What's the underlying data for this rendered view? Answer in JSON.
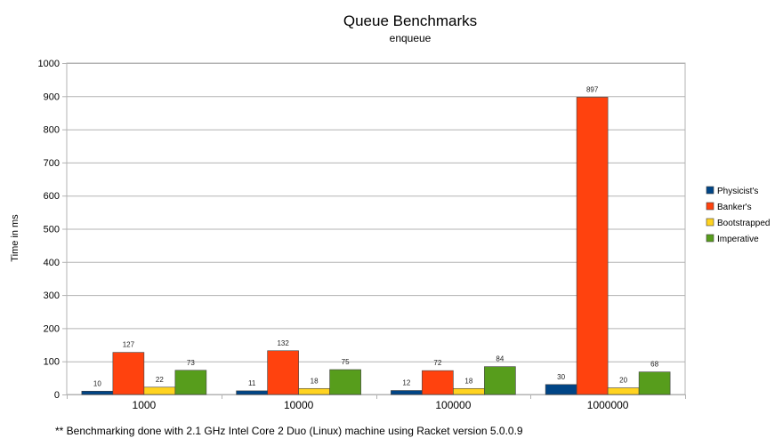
{
  "chart_data": {
    "type": "bar",
    "title": "Queue Benchmarks",
    "subtitle": "enqueue",
    "xlabel": "",
    "ylabel": "Time in ms",
    "ylim": [
      0,
      1000
    ],
    "yticks": [
      0,
      100,
      200,
      300,
      400,
      500,
      600,
      700,
      800,
      900,
      1000
    ],
    "grid": true,
    "legend_position": "right",
    "categories": [
      "1000",
      "10000",
      "100000",
      "1000000"
    ],
    "series": [
      {
        "name": "Physicist's",
        "color": "#004586",
        "values": [
          10,
          11,
          12,
          30
        ]
      },
      {
        "name": "Banker's",
        "color": "#ff420e",
        "values": [
          127,
          132,
          72,
          897
        ]
      },
      {
        "name": "Bootstrapped",
        "color": "#ffd320",
        "values": [
          22,
          18,
          18,
          20
        ]
      },
      {
        "name": "Imperative",
        "color": "#579d1c",
        "values": [
          73,
          75,
          84,
          68
        ]
      }
    ]
  },
  "footnote": "** Benchmarking done with 2.1 GHz Intel Core 2 Duo (Linux) machine using Racket version 5.0.0.9"
}
